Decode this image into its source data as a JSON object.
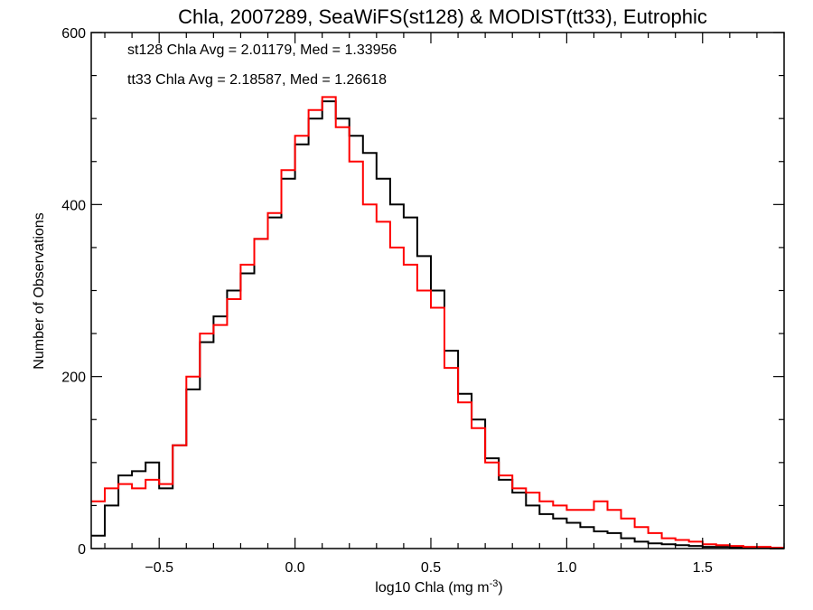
{
  "chart_data": {
    "type": "line",
    "title": "Chla, 2007289, SeaWiFS(st128) & MODIST(tt33), Eutrophic",
    "xlabel": "log10 Chla (mg m",
    "xlabel_sup": "-3",
    "xlabel_close": ")",
    "ylabel": "Number of Observations",
    "xlim": [
      -0.75,
      1.8
    ],
    "ylim": [
      0,
      600
    ],
    "x_ticks": [
      -0.5,
      0.0,
      0.5,
      1.0,
      1.5
    ],
    "x_tick_labels": [
      "−0.5",
      "0.0",
      "0.5",
      "1.0",
      "1.5"
    ],
    "y_ticks": [
      0,
      200,
      400,
      600
    ],
    "y_tick_labels": [
      "0",
      "200",
      "400",
      "600"
    ],
    "annotations": [
      {
        "text": "st128 Chla Avg = 2.01179, Med = 1.33956",
        "color": "#000000"
      },
      {
        "text": "tt33 Chla Avg = 2.18587, Med = 1.26618",
        "color": "#ff0000"
      }
    ],
    "series": [
      {
        "color": "#000000",
        "x": [
          -0.75,
          -0.7,
          -0.65,
          -0.6,
          -0.55,
          -0.5,
          -0.45,
          -0.4,
          -0.35,
          -0.3,
          -0.25,
          -0.2,
          -0.15,
          -0.1,
          -0.05,
          0.0,
          0.05,
          0.1,
          0.15,
          0.2,
          0.25,
          0.3,
          0.35,
          0.4,
          0.45,
          0.5,
          0.55,
          0.6,
          0.65,
          0.7,
          0.75,
          0.8,
          0.85,
          0.9,
          0.95,
          1.0,
          1.05,
          1.1,
          1.15,
          1.2,
          1.25,
          1.3,
          1.35,
          1.4,
          1.45,
          1.5,
          1.55,
          1.6,
          1.65,
          1.7,
          1.75,
          1.8
        ],
        "y": [
          15,
          50,
          85,
          90,
          100,
          70,
          120,
          185,
          240,
          270,
          300,
          320,
          360,
          385,
          430,
          470,
          500,
          520,
          500,
          480,
          460,
          430,
          400,
          385,
          340,
          300,
          230,
          180,
          150,
          105,
          80,
          65,
          50,
          40,
          35,
          30,
          25,
          20,
          18,
          12,
          8,
          6,
          5,
          4,
          3,
          2,
          2,
          1,
          1,
          1,
          0,
          0
        ]
      },
      {
        "color": "#ff0000",
        "x": [
          -0.75,
          -0.7,
          -0.65,
          -0.6,
          -0.55,
          -0.5,
          -0.45,
          -0.4,
          -0.35,
          -0.3,
          -0.25,
          -0.2,
          -0.15,
          -0.1,
          -0.05,
          0.0,
          0.05,
          0.1,
          0.15,
          0.2,
          0.25,
          0.3,
          0.35,
          0.4,
          0.45,
          0.5,
          0.55,
          0.6,
          0.65,
          0.7,
          0.75,
          0.8,
          0.85,
          0.9,
          0.95,
          1.0,
          1.05,
          1.1,
          1.15,
          1.2,
          1.25,
          1.3,
          1.35,
          1.4,
          1.45,
          1.5,
          1.55,
          1.6,
          1.65,
          1.7,
          1.75,
          1.8
        ],
        "y": [
          55,
          70,
          75,
          70,
          80,
          75,
          120,
          200,
          250,
          260,
          290,
          330,
          360,
          390,
          440,
          480,
          510,
          525,
          490,
          450,
          400,
          380,
          350,
          330,
          300,
          280,
          210,
          170,
          140,
          100,
          85,
          70,
          65,
          55,
          50,
          45,
          45,
          55,
          45,
          35,
          25,
          18,
          12,
          10,
          8,
          5,
          4,
          3,
          2,
          2,
          1,
          1
        ]
      }
    ]
  }
}
